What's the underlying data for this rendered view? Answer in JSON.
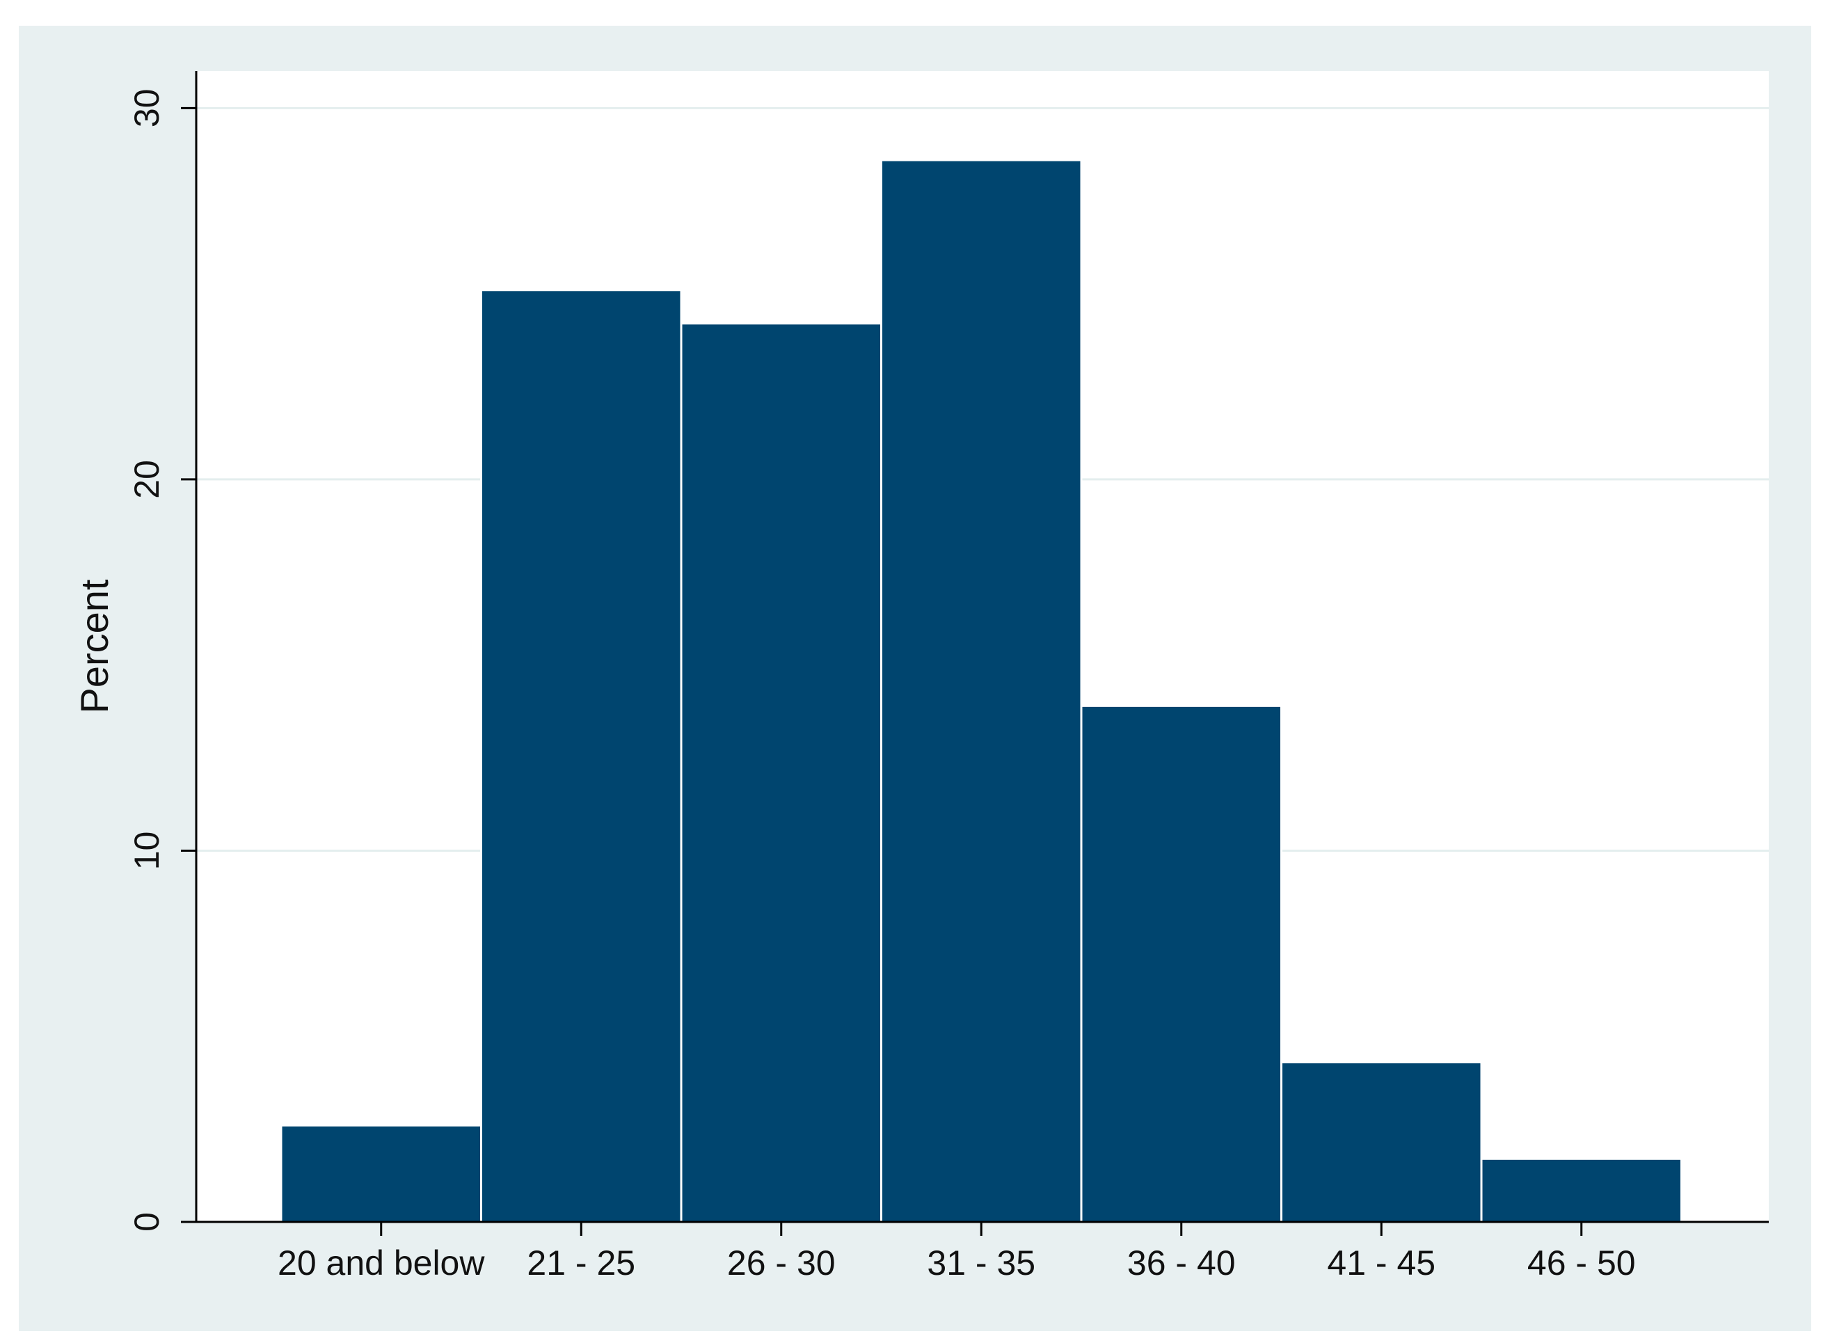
{
  "chart_data": {
    "type": "bar",
    "title": "",
    "xlabel": "",
    "ylabel": "Percent",
    "categories": [
      "20 and below",
      "21 - 25",
      "26 - 30",
      "31 - 35",
      "36 - 40",
      "41 - 45",
      "46 - 50"
    ],
    "values": [
      2.6,
      25.1,
      24.2,
      28.6,
      13.9,
      4.3,
      1.7
    ],
    "ylim": [
      0,
      31
    ],
    "yticks": [
      "0",
      "10",
      "20",
      "30"
    ],
    "grid": true,
    "legend": "none",
    "colors": {
      "bar": "#00456f",
      "bar_edge": "#ffffff",
      "plot_bg": "#ffffff",
      "frame_bg": "#e8f0f1",
      "grid": "#e4eeee",
      "axis": "#000000"
    }
  }
}
